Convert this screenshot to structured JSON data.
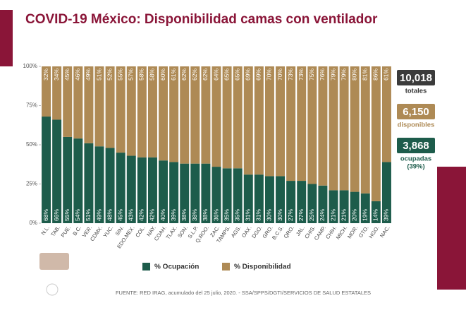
{
  "chart_data": {
    "type": "stacked_bar",
    "title": "COVID-19 México: Disponibilidad camas con ventilador",
    "categories": [
      "N.L.",
      "TAB.",
      "PUE.",
      "B.C.",
      "VER.",
      "CDMX.",
      "YUC.",
      "SIN.",
      "EDO.MEX.",
      "COL.",
      "NAY.",
      "COAH.",
      "TLAX.",
      "SON.",
      "S.L.P.",
      "Q.ROO.",
      "ZAC.",
      "TAMPS.",
      "AGS.",
      "OAX.",
      "DGO.",
      "GRO.",
      "B.C.S.",
      "QRO.",
      "JAL.",
      "CHIS.",
      "CAMP.",
      "CHIH.",
      "MICH.",
      "MOR.",
      "GTO.",
      "HGO.",
      "NAC."
    ],
    "series": [
      {
        "name": "% Ocupación",
        "color": "#1d5c4b",
        "values": [
          68,
          66,
          55,
          54,
          51,
          49,
          48,
          45,
          43,
          42,
          42,
          40,
          39,
          38,
          38,
          38,
          36,
          35,
          35,
          31,
          31,
          30,
          30,
          27,
          27,
          25,
          24,
          21,
          21,
          20,
          19,
          14,
          39
        ],
        "value_labels": [
          "68%",
          "66%",
          "55%",
          "54%",
          "51%",
          "49%",
          "48%",
          "45%",
          "43%",
          "42%",
          "42%",
          "40%",
          "39%",
          "38%",
          "38%",
          "38%",
          "36%",
          "35%",
          "35%",
          "31%",
          "31%",
          "30%",
          "30%",
          "27%",
          "27%",
          "25%",
          "24%",
          "21%",
          "21%",
          "20%",
          "19%",
          "14%",
          "39%"
        ]
      },
      {
        "name": "% Disponibilidad",
        "color": "#ae8a55",
        "values": [
          32,
          34,
          45,
          46,
          49,
          51,
          52,
          55,
          57,
          58,
          58,
          60,
          61,
          62,
          62,
          62,
          64,
          65,
          65,
          69,
          69,
          70,
          70,
          73,
          73,
          75,
          76,
          79,
          79,
          80,
          81,
          86,
          61
        ],
        "value_labels": [
          "32%",
          "34%",
          "45%",
          "46%",
          "49%",
          "51%",
          "52%",
          "55%",
          "57%",
          "58%",
          "58%",
          "60%",
          "61%",
          "62%",
          "62%",
          "62%",
          "64%",
          "65%",
          "65%",
          "69%",
          "69%",
          "70%",
          "70%",
          "73%",
          "73%",
          "75%",
          "76%",
          "79%",
          "79%",
          "80%",
          "81%",
          "86%",
          "61%"
        ]
      }
    ],
    "ylim": [
      0,
      100
    ],
    "yticks": [
      {
        "value": 0,
        "label": "0%"
      },
      {
        "value": 25,
        "label": "25%"
      },
      {
        "value": 50,
        "label": "50%"
      },
      {
        "value": 75,
        "label": "75%"
      },
      {
        "value": 100,
        "label": "100%"
      }
    ],
    "callouts": [
      {
        "value": "10,018",
        "label": [
          "totales"
        ],
        "color": "#3b3b3b"
      },
      {
        "value": "6,150",
        "label": [
          "disponibles"
        ],
        "color": "#ae8a55"
      },
      {
        "value": "3,868",
        "label": [
          "ocupadas",
          "(39%)"
        ],
        "color": "#1d5c4b"
      }
    ],
    "source": "FUENTE: RED IRAG, acumulado del 25 julio, 2020. - SSA/SPPS/DGTI/SERVICIOS DE SALUD ESTATALES"
  }
}
